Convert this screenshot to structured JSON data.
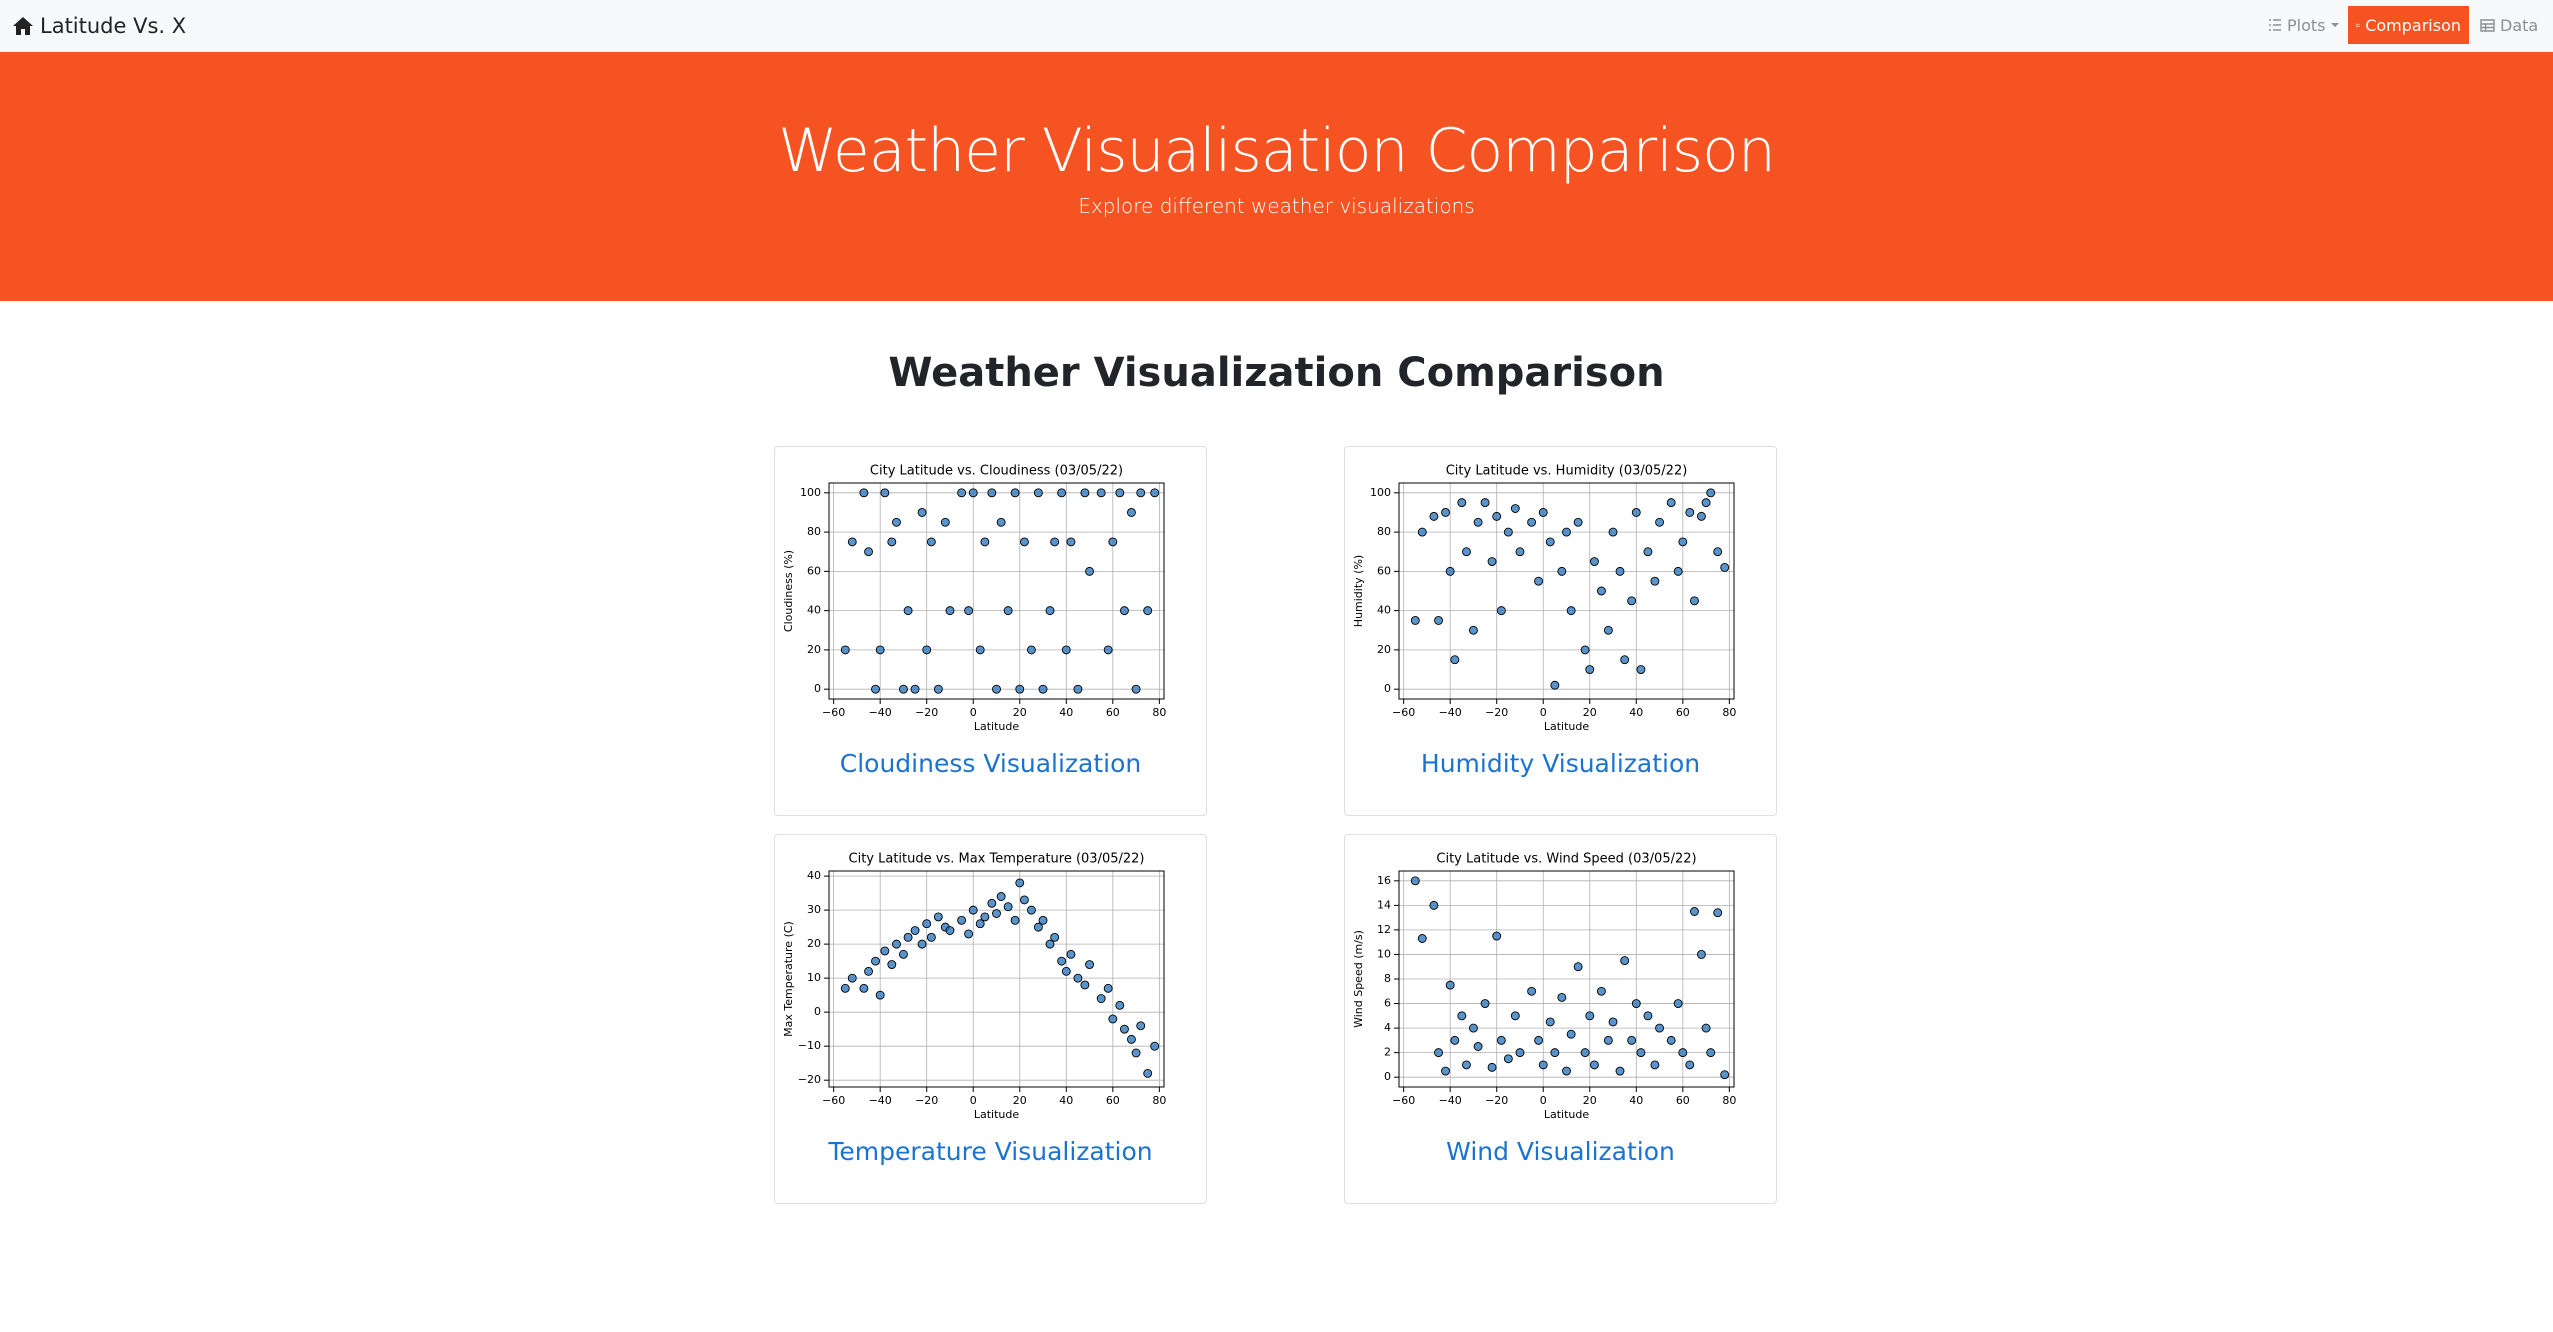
{
  "navbar": {
    "brand": "Latitude Vs. X",
    "items": [
      "Plots",
      "Comparison",
      "Data"
    ]
  },
  "hero": {
    "title": "Weather Visualisation Comparison",
    "subtitle": "Explore different weather visualizations"
  },
  "heading": "Weather Visualization Comparison",
  "cards": [
    {
      "link": "Cloudiness Visualization"
    },
    {
      "link": "Humidity Visualization"
    },
    {
      "link": "Temperature Visualization"
    },
    {
      "link": "Wind Visualization"
    }
  ],
  "chart_data": [
    {
      "type": "scatter",
      "title": "City Latitude vs. Cloudiness (03/05/22)",
      "x_label": "Latitude",
      "y_label": "Cloudiness (%)",
      "color": "#2f7bbf",
      "grid": true,
      "xlim": [
        -62,
        82
      ],
      "ylim": [
        -5,
        105
      ],
      "xticks": [
        {
          "value": -60,
          "label": "−60"
        },
        {
          "value": -40,
          "label": "−40"
        },
        {
          "value": -20,
          "label": "−20"
        },
        0,
        20,
        40,
        60,
        80
      ],
      "yticks": [
        0,
        20,
        40,
        60,
        80,
        100
      ],
      "x": [
        -55,
        -52,
        -47,
        -45,
        -42,
        -40,
        -38,
        -35,
        -33,
        -30,
        -28,
        -25,
        -22,
        -20,
        -18,
        -15,
        -12,
        -10,
        -5,
        -2,
        0,
        3,
        5,
        8,
        10,
        12,
        15,
        18,
        20,
        22,
        25,
        28,
        30,
        33,
        35,
        38,
        40,
        42,
        45,
        48,
        50,
        55,
        58,
        60,
        63,
        65,
        68,
        70,
        72,
        75,
        78
      ],
      "values": [
        20,
        75,
        100,
        70,
        0,
        20,
        100,
        75,
        85,
        0,
        40,
        0,
        90,
        20,
        75,
        0,
        85,
        40,
        100,
        40,
        100,
        20,
        75,
        100,
        0,
        85,
        40,
        100,
        0,
        75,
        20,
        100,
        0,
        40,
        75,
        100,
        20,
        75,
        0,
        100,
        60,
        100,
        20,
        75,
        100,
        40,
        90,
        0,
        100,
        40,
        100
      ]
    },
    {
      "type": "scatter",
      "title": "City Latitude vs. Humidity (03/05/22)",
      "x_label": "Latitude",
      "y_label": "Humidity (%)",
      "color": "#2f7bbf",
      "grid": true,
      "xlim": [
        -62,
        82
      ],
      "ylim": [
        -5,
        105
      ],
      "xticks": [
        {
          "value": -60,
          "label": "−60"
        },
        {
          "value": -40,
          "label": "−40"
        },
        {
          "value": -20,
          "label": "−20"
        },
        0,
        20,
        40,
        60,
        80
      ],
      "yticks": [
        0,
        20,
        40,
        60,
        80,
        100
      ],
      "x": [
        -55,
        -52,
        -47,
        -45,
        -42,
        -40,
        -38,
        -35,
        -33,
        -30,
        -28,
        -25,
        -22,
        -20,
        -18,
        -15,
        -12,
        -10,
        -5,
        -2,
        0,
        3,
        5,
        8,
        10,
        12,
        15,
        18,
        20,
        22,
        25,
        28,
        30,
        33,
        35,
        38,
        40,
        42,
        45,
        48,
        50,
        55,
        58,
        60,
        63,
        65,
        68,
        70,
        72,
        75,
        78
      ],
      "values": [
        35,
        80,
        88,
        35,
        90,
        60,
        15,
        95,
        70,
        30,
        85,
        95,
        65,
        88,
        40,
        80,
        92,
        70,
        85,
        55,
        90,
        75,
        2,
        60,
        80,
        40,
        85,
        20,
        10,
        65,
        50,
        30,
        80,
        60,
        15,
        45,
        90,
        10,
        70,
        55,
        85,
        95,
        60,
        75,
        90,
        45,
        88,
        95,
        100,
        70,
        62
      ]
    },
    {
      "type": "scatter",
      "title": "City Latitude vs. Max Temperature (03/05/22)",
      "x_label": "Latitude",
      "y_label": "Max Temperature (C)",
      "color": "#2f7bbf",
      "grid": true,
      "xlim": [
        -62,
        82
      ],
      "ylim": [
        -22,
        41.5
      ],
      "xticks": [
        {
          "value": -60,
          "label": "−60"
        },
        {
          "value": -40,
          "label": "−40"
        },
        {
          "value": -20,
          "label": "−20"
        },
        0,
        20,
        40,
        60,
        80
      ],
      "yticks": [
        {
          "value": -20,
          "label": "−20"
        },
        {
          "value": -10,
          "label": "−10"
        },
        0,
        10,
        20,
        30,
        40
      ],
      "x": [
        -55,
        -52,
        -47,
        -45,
        -42,
        -40,
        -38,
        -35,
        -33,
        -30,
        -28,
        -25,
        -22,
        -20,
        -18,
        -15,
        -12,
        -10,
        -5,
        -2,
        0,
        3,
        5,
        8,
        10,
        12,
        15,
        18,
        20,
        22,
        25,
        28,
        30,
        33,
        35,
        38,
        40,
        42,
        45,
        48,
        50,
        55,
        58,
        60,
        63,
        65,
        68,
        70,
        72,
        75,
        78
      ],
      "values": [
        7,
        10,
        7,
        12,
        15,
        5,
        18,
        14,
        20,
        17,
        22,
        24,
        20,
        26,
        22,
        28,
        25,
        24,
        27,
        23,
        30,
        26,
        28,
        32,
        29,
        34,
        31,
        27,
        38,
        33,
        30,
        25,
        27,
        20,
        22,
        15,
        12,
        17,
        10,
        8,
        14,
        4,
        7,
        -2,
        2,
        -5,
        -8,
        -12,
        -4,
        -18,
        -10
      ]
    },
    {
      "type": "scatter",
      "title": "City Latitude vs. Wind Speed (03/05/22)",
      "x_label": "Latitude",
      "y_label": "Wind Speed (m/s)",
      "color": "#2f7bbf",
      "grid": true,
      "xlim": [
        -62,
        82
      ],
      "ylim": [
        -0.8,
        16.8
      ],
      "xticks": [
        {
          "value": -60,
          "label": "−60"
        },
        {
          "value": -40,
          "label": "−40"
        },
        {
          "value": -20,
          "label": "−20"
        },
        0,
        20,
        40,
        60,
        80
      ],
      "yticks": [
        0,
        2,
        4,
        6,
        8,
        10,
        12,
        14,
        16
      ],
      "x": [
        -55,
        -52,
        -47,
        -45,
        -42,
        -40,
        -38,
        -35,
        -33,
        -30,
        -28,
        -25,
        -22,
        -20,
        -18,
        -15,
        -12,
        -10,
        -5,
        -2,
        0,
        3,
        5,
        8,
        10,
        12,
        15,
        18,
        20,
        22,
        25,
        28,
        30,
        33,
        35,
        38,
        40,
        42,
        45,
        48,
        50,
        55,
        58,
        60,
        63,
        65,
        68,
        70,
        72,
        75,
        78
      ],
      "values": [
        16,
        11.3,
        14,
        2,
        0.5,
        7.5,
        3,
        5,
        1,
        4,
        2.5,
        6,
        0.8,
        11.5,
        3,
        1.5,
        5,
        2,
        7,
        3,
        1,
        4.5,
        2,
        6.5,
        0.5,
        3.5,
        9,
        2,
        5,
        1,
        7,
        3,
        4.5,
        0.5,
        9.5,
        3,
        6,
        2,
        5,
        1,
        4,
        3,
        6,
        2,
        1,
        13.5,
        10,
        4,
        2,
        13.4,
        0.2
      ]
    }
  ]
}
